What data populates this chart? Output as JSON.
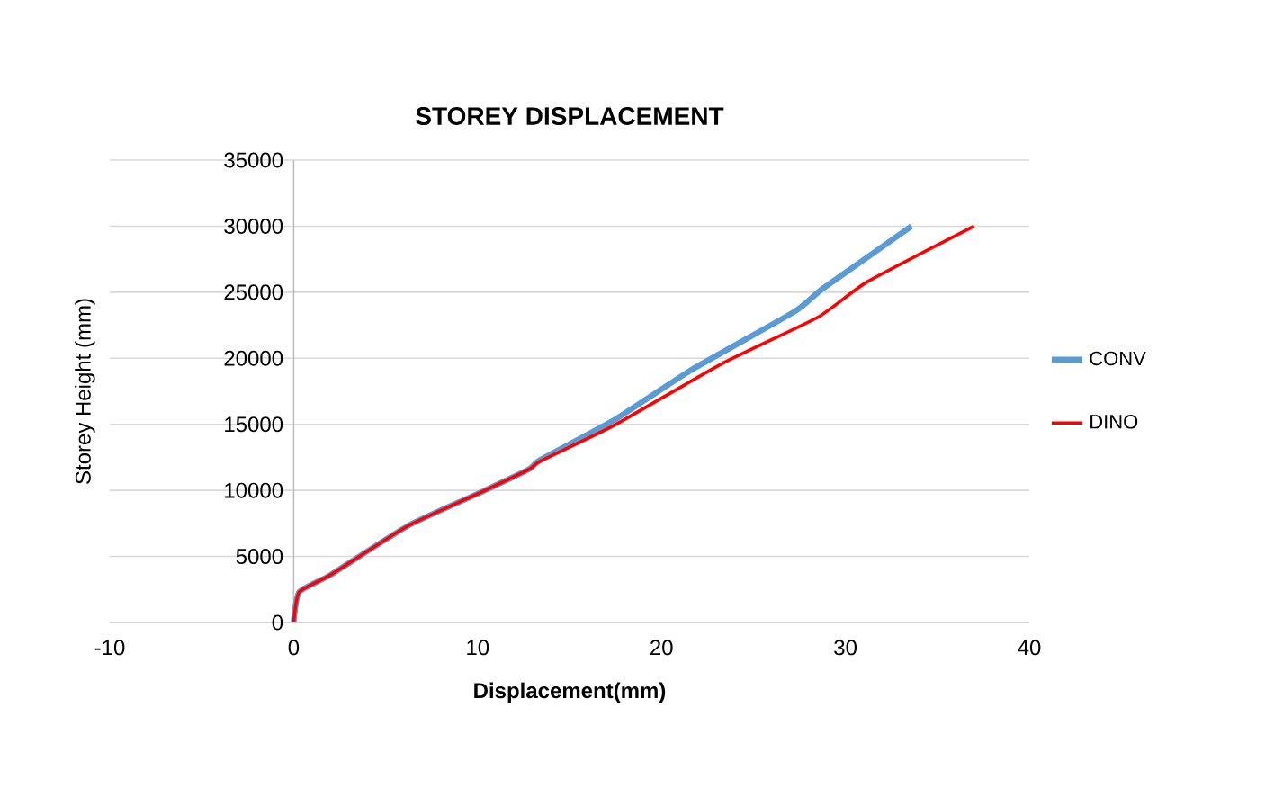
{
  "chart_data": {
    "type": "line",
    "title": "STOREY DISPLACEMENT",
    "xlabel": "Displacement(mm)",
    "ylabel": "Storey  Height (mm)",
    "xlim": [
      -10,
      40
    ],
    "xticks": [
      -10,
      0,
      10,
      20,
      30,
      40
    ],
    "ylim": [
      0,
      35000
    ],
    "yticks": [
      0,
      5000,
      10000,
      15000,
      20000,
      25000,
      30000,
      35000
    ],
    "grid": "y",
    "legend": "right",
    "marker": "none",
    "line_style": "solid",
    "series": [
      {
        "name": "CONV",
        "color": "#5b9bd5",
        "x": [
          0,
          0.3,
          2.0,
          6.2,
          10.1,
          12.8,
          13.4,
          17.4,
          21.6,
          27.2,
          28.8,
          33.6
        ],
        "values": [
          0,
          2300,
          3600,
          7300,
          9800,
          11600,
          12300,
          15300,
          19100,
          23500,
          25300,
          30000
        ]
      },
      {
        "name": "DINO",
        "color": "#ff0000",
        "x": [
          0,
          0.3,
          2.0,
          6.2,
          10.1,
          12.8,
          13.4,
          17.4,
          23.3,
          28.5,
          31.2,
          37.0
        ],
        "values": [
          0,
          2300,
          3600,
          7300,
          9800,
          11600,
          12200,
          14900,
          19600,
          23100,
          25800,
          30000
        ]
      }
    ]
  }
}
